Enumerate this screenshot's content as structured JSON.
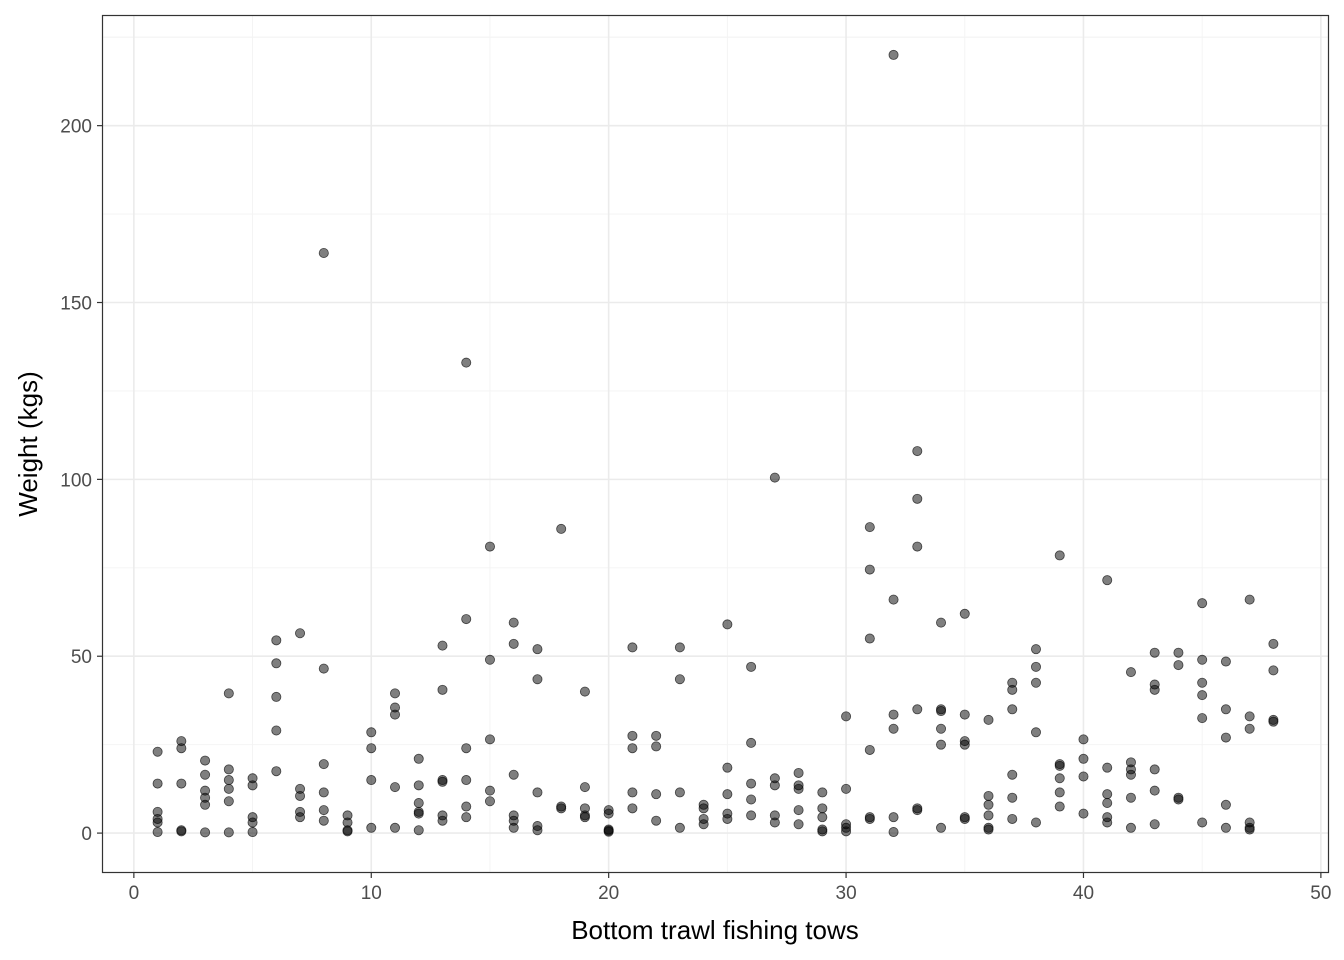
{
  "chart_data": {
    "type": "scatter",
    "title": "",
    "xlabel": "Bottom trawl fishing tows",
    "ylabel": "Weight (kgs)",
    "xlim": [
      -1.3,
      50.3
    ],
    "ylim": [
      -11,
      231
    ],
    "x_ticks": [
      0,
      10,
      20,
      30,
      40,
      50
    ],
    "y_ticks": [
      0,
      50,
      100,
      150,
      200
    ],
    "x_tick_labels": [
      "0",
      "10",
      "20",
      "30",
      "40",
      "50"
    ],
    "y_tick_labels": [
      "0",
      "50",
      "100",
      "150",
      "200"
    ],
    "grid": true,
    "legend": "none",
    "marker_color": "#000000",
    "marker_alpha": 0.5,
    "points": [
      [
        1,
        23
      ],
      [
        1,
        14
      ],
      [
        1,
        6
      ],
      [
        1,
        4
      ],
      [
        1,
        3
      ],
      [
        1,
        0.3
      ],
      [
        2,
        26
      ],
      [
        2,
        24
      ],
      [
        2,
        14
      ],
      [
        2,
        0.8
      ],
      [
        2,
        0.5
      ],
      [
        3,
        20.5
      ],
      [
        3,
        16.5
      ],
      [
        3,
        12
      ],
      [
        3,
        10
      ],
      [
        3,
        8
      ],
      [
        3,
        0.2
      ],
      [
        4,
        39.5
      ],
      [
        4,
        18
      ],
      [
        4,
        15
      ],
      [
        4,
        12.5
      ],
      [
        4,
        9
      ],
      [
        4,
        0.2
      ],
      [
        5,
        15.5
      ],
      [
        5,
        13.5
      ],
      [
        5,
        4.5
      ],
      [
        5,
        3
      ],
      [
        5,
        0.3
      ],
      [
        6,
        54.5
      ],
      [
        6,
        48
      ],
      [
        6,
        38.5
      ],
      [
        6,
        29
      ],
      [
        6,
        17.5
      ],
      [
        7,
        56.5
      ],
      [
        7,
        12.5
      ],
      [
        7,
        10.5
      ],
      [
        7,
        6
      ],
      [
        7,
        4.5
      ],
      [
        8,
        164
      ],
      [
        8,
        46.5
      ],
      [
        8,
        19.5
      ],
      [
        8,
        11.5
      ],
      [
        8,
        6.5
      ],
      [
        8,
        3.5
      ],
      [
        9,
        5
      ],
      [
        9,
        3
      ],
      [
        9,
        0.8
      ],
      [
        9,
        0.5
      ],
      [
        10,
        28.5
      ],
      [
        10,
        24
      ],
      [
        10,
        15
      ],
      [
        10,
        1.5
      ],
      [
        11,
        39.5
      ],
      [
        11,
        35.5
      ],
      [
        11,
        33.5
      ],
      [
        11,
        13
      ],
      [
        11,
        1.5
      ],
      [
        12,
        21
      ],
      [
        12,
        13.5
      ],
      [
        12,
        8.5
      ],
      [
        12,
        6
      ],
      [
        12,
        5.5
      ],
      [
        12,
        0.8
      ],
      [
        13,
        53
      ],
      [
        13,
        40.5
      ],
      [
        13,
        15
      ],
      [
        13,
        14.5
      ],
      [
        13,
        5
      ],
      [
        13,
        3.5
      ],
      [
        14,
        133
      ],
      [
        14,
        60.5
      ],
      [
        14,
        24
      ],
      [
        14,
        15
      ],
      [
        14,
        7.5
      ],
      [
        14,
        4.5
      ],
      [
        15,
        81
      ],
      [
        15,
        49
      ],
      [
        15,
        26.5
      ],
      [
        15,
        12
      ],
      [
        15,
        9
      ],
      [
        16,
        59.5
      ],
      [
        16,
        53.5
      ],
      [
        16,
        16.5
      ],
      [
        16,
        5
      ],
      [
        16,
        3.5
      ],
      [
        16,
        1.5
      ],
      [
        17,
        52
      ],
      [
        17,
        43.5
      ],
      [
        17,
        11.5
      ],
      [
        17,
        2
      ],
      [
        17,
        0.8
      ],
      [
        18,
        86
      ],
      [
        18,
        7.5
      ],
      [
        18,
        7
      ],
      [
        19,
        40
      ],
      [
        19,
        13
      ],
      [
        19,
        7
      ],
      [
        19,
        5
      ],
      [
        19,
        4.5
      ],
      [
        20,
        6.5
      ],
      [
        20,
        5.5
      ],
      [
        20,
        1
      ],
      [
        20,
        0.7
      ],
      [
        20,
        0.4
      ],
      [
        21,
        52.5
      ],
      [
        21,
        27.5
      ],
      [
        21,
        24
      ],
      [
        21,
        11.5
      ],
      [
        21,
        7
      ],
      [
        22,
        27.5
      ],
      [
        22,
        24.5
      ],
      [
        22,
        11
      ],
      [
        22,
        3.5
      ],
      [
        23,
        52.5
      ],
      [
        23,
        43.5
      ],
      [
        23,
        11.5
      ],
      [
        23,
        1.5
      ],
      [
        24,
        8
      ],
      [
        24,
        7
      ],
      [
        24,
        4
      ],
      [
        24,
        2.5
      ],
      [
        25,
        59
      ],
      [
        25,
        18.5
      ],
      [
        25,
        11
      ],
      [
        25,
        5.5
      ],
      [
        25,
        4
      ],
      [
        26,
        47
      ],
      [
        26,
        25.5
      ],
      [
        26,
        14
      ],
      [
        26,
        9.5
      ],
      [
        26,
        5
      ],
      [
        27,
        100.5
      ],
      [
        27,
        15.5
      ],
      [
        27,
        13.5
      ],
      [
        27,
        5
      ],
      [
        27,
        3
      ],
      [
        28,
        17
      ],
      [
        28,
        13.5
      ],
      [
        28,
        12.5
      ],
      [
        28,
        6.5
      ],
      [
        28,
        2.5
      ],
      [
        29,
        11.5
      ],
      [
        29,
        7
      ],
      [
        29,
        4.5
      ],
      [
        29,
        1
      ],
      [
        29,
        0.5
      ],
      [
        30,
        33
      ],
      [
        30,
        12.5
      ],
      [
        30,
        2.5
      ],
      [
        30,
        1.5
      ],
      [
        30,
        0.5
      ],
      [
        31,
        86.5
      ],
      [
        31,
        74.5
      ],
      [
        31,
        55
      ],
      [
        31,
        23.5
      ],
      [
        31,
        4.5
      ],
      [
        31,
        4
      ],
      [
        32,
        220
      ],
      [
        32,
        66
      ],
      [
        32,
        33.5
      ],
      [
        32,
        29.5
      ],
      [
        32,
        4.5
      ],
      [
        32,
        0.3
      ],
      [
        33,
        108
      ],
      [
        33,
        94.5
      ],
      [
        33,
        81
      ],
      [
        33,
        35
      ],
      [
        33,
        7
      ],
      [
        33,
        6.5
      ],
      [
        34,
        59.5
      ],
      [
        34,
        35
      ],
      [
        34,
        34.5
      ],
      [
        34,
        29.5
      ],
      [
        34,
        25
      ],
      [
        34,
        1.5
      ],
      [
        35,
        62
      ],
      [
        35,
        33.5
      ],
      [
        35,
        26
      ],
      [
        35,
        25
      ],
      [
        35,
        4.5
      ],
      [
        35,
        4
      ],
      [
        36,
        32
      ],
      [
        36,
        10.5
      ],
      [
        36,
        8
      ],
      [
        36,
        5
      ],
      [
        36,
        1.5
      ],
      [
        36,
        1
      ],
      [
        37,
        42.5
      ],
      [
        37,
        40.5
      ],
      [
        37,
        35
      ],
      [
        37,
        16.5
      ],
      [
        37,
        10
      ],
      [
        37,
        4
      ],
      [
        38,
        52
      ],
      [
        38,
        47
      ],
      [
        38,
        42.5
      ],
      [
        38,
        28.5
      ],
      [
        38,
        3
      ],
      [
        39,
        78.5
      ],
      [
        39,
        19.5
      ],
      [
        39,
        19
      ],
      [
        39,
        15.5
      ],
      [
        39,
        11.5
      ],
      [
        39,
        7.5
      ],
      [
        40,
        26.5
      ],
      [
        40,
        21
      ],
      [
        40,
        16
      ],
      [
        40,
        5.5
      ],
      [
        41,
        71.5
      ],
      [
        41,
        18.5
      ],
      [
        41,
        11
      ],
      [
        41,
        8.5
      ],
      [
        41,
        4.5
      ],
      [
        41,
        3
      ],
      [
        42,
        45.5
      ],
      [
        42,
        20
      ],
      [
        42,
        18
      ],
      [
        42,
        16.5
      ],
      [
        42,
        10
      ],
      [
        42,
        1.5
      ],
      [
        43,
        51
      ],
      [
        43,
        42
      ],
      [
        43,
        40.5
      ],
      [
        43,
        18
      ],
      [
        43,
        12
      ],
      [
        43,
        2.5
      ],
      [
        44,
        51
      ],
      [
        44,
        47.5
      ],
      [
        44,
        10
      ],
      [
        44,
        9.5
      ],
      [
        45,
        65
      ],
      [
        45,
        49
      ],
      [
        45,
        42.5
      ],
      [
        45,
        39
      ],
      [
        45,
        32.5
      ],
      [
        45,
        3
      ],
      [
        46,
        48.5
      ],
      [
        46,
        35
      ],
      [
        46,
        27
      ],
      [
        46,
        8
      ],
      [
        46,
        1.5
      ],
      [
        47,
        66
      ],
      [
        47,
        33
      ],
      [
        47,
        29.5
      ],
      [
        47,
        3
      ],
      [
        47,
        1.5
      ],
      [
        47,
        1
      ],
      [
        48,
        53.5
      ],
      [
        48,
        46
      ],
      [
        48,
        32
      ],
      [
        48,
        31.5
      ]
    ]
  }
}
